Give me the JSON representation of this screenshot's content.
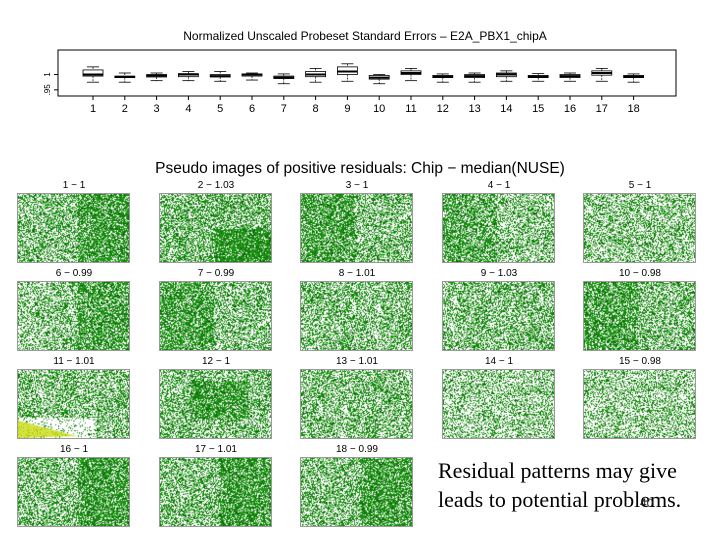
{
  "page": {
    "caption_line1": "Residual patterns  may give",
    "caption_line2": "leads to  potential problems.",
    "page_number": "40"
  },
  "chart_data": [
    {
      "type": "box",
      "title": "Normalized Unscaled Probeset Standard Errors –  E2A_PBX1_chipA",
      "ytick_labels": [
        "1",
        ".95"
      ],
      "categories": [
        "1",
        "2",
        "3",
        "4",
        "5",
        "6",
        "7",
        "8",
        "9",
        "10",
        "11",
        "12",
        "13",
        "14",
        "15",
        "16",
        "17",
        "18"
      ],
      "ylim": [
        0.93,
        1.08
      ],
      "boxes": [
        {
          "q1": 0.995,
          "median": 1.0,
          "q3": 1.015,
          "whisker_low": 0.975,
          "whisker_high": 1.025
        },
        {
          "q1": 0.99,
          "median": 0.992,
          "q3": 0.995,
          "whisker_low": 0.975,
          "whisker_high": 1.005
        },
        {
          "q1": 0.992,
          "median": 0.997,
          "q3": 1.0,
          "whisker_low": 0.98,
          "whisker_high": 1.005
        },
        {
          "q1": 0.993,
          "median": 1.0,
          "q3": 1.003,
          "whisker_low": 0.98,
          "whisker_high": 1.01
        },
        {
          "q1": 0.992,
          "median": 0.995,
          "q3": 1.0,
          "whisker_low": 0.978,
          "whisker_high": 1.01
        },
        {
          "q1": 0.995,
          "median": 1.0,
          "q3": 1.002,
          "whisker_low": 0.982,
          "whisker_high": 1.005
        },
        {
          "q1": 0.987,
          "median": 0.99,
          "q3": 0.995,
          "whisker_low": 0.97,
          "whisker_high": 1.002
        },
        {
          "q1": 0.993,
          "median": 1.0,
          "q3": 1.01,
          "whisker_low": 0.975,
          "whisker_high": 1.02
        },
        {
          "q1": 1.0,
          "median": 1.01,
          "q3": 1.025,
          "whisker_low": 0.978,
          "whisker_high": 1.035
        },
        {
          "q1": 0.985,
          "median": 0.99,
          "q3": 0.997,
          "whisker_low": 0.97,
          "whisker_high": 1.0
        },
        {
          "q1": 1.0,
          "median": 1.005,
          "q3": 1.012,
          "whisker_low": 0.98,
          "whisker_high": 1.02
        },
        {
          "q1": 0.99,
          "median": 0.993,
          "q3": 0.997,
          "whisker_low": 0.975,
          "whisker_high": 1.002
        },
        {
          "q1": 0.99,
          "median": 0.995,
          "q3": 1.0,
          "whisker_low": 0.975,
          "whisker_high": 1.005
        },
        {
          "q1": 0.993,
          "median": 1.0,
          "q3": 1.005,
          "whisker_low": 0.978,
          "whisker_high": 1.012
        },
        {
          "q1": 0.99,
          "median": 0.993,
          "q3": 0.997,
          "whisker_low": 0.978,
          "whisker_high": 1.003
        },
        {
          "q1": 0.99,
          "median": 0.995,
          "q3": 1.0,
          "whisker_low": 0.978,
          "whisker_high": 1.005
        },
        {
          "q1": 0.998,
          "median": 1.005,
          "q3": 1.012,
          "whisker_low": 0.978,
          "whisker_high": 1.02
        },
        {
          "q1": 0.99,
          "median": 0.993,
          "q3": 0.997,
          "whisker_low": 0.975,
          "whisker_high": 1.002
        }
      ],
      "colors": {
        "box": "#000000"
      }
    },
    {
      "type": "image-grid",
      "title": "Pseudo images of positive residuals: Chip − median(NUSE)",
      "colors": {
        "dots": "#1f9a16",
        "dots_dark": "#0e6e0a",
        "highlight": "#c8d800"
      },
      "panels": [
        {
          "label": "1 − 1",
          "density": 0.55,
          "dense_region": "right"
        },
        {
          "label": "2 − 1.03",
          "density": 0.6,
          "dense_region": "bottom-right"
        },
        {
          "label": "3 − 1",
          "density": 0.55,
          "dense_region": "left"
        },
        {
          "label": "4 − 1",
          "density": 0.5,
          "dense_region": "left"
        },
        {
          "label": "5 − 1",
          "density": 0.5,
          "dense_region": "none"
        },
        {
          "label": "6 − 0.99",
          "density": 0.5,
          "dense_region": "right"
        },
        {
          "label": "7 − 0.99",
          "density": 0.55,
          "dense_region": "left"
        },
        {
          "label": "8 − 1.01",
          "density": 0.55,
          "dense_region": "none"
        },
        {
          "label": "9 − 1.03",
          "density": 0.55,
          "dense_region": "none"
        },
        {
          "label": "10 − 0.98",
          "density": 0.55,
          "dense_region": "left"
        },
        {
          "label": "11 − 1.01",
          "density": 0.55,
          "dense_region": "bottom-left"
        },
        {
          "label": "12 − 1",
          "density": 0.55,
          "dense_region": "center"
        },
        {
          "label": "13 − 1.01",
          "density": 0.55,
          "dense_region": "none"
        },
        {
          "label": "14 − 1",
          "density": 0.45,
          "dense_region": "none"
        },
        {
          "label": "15 − 0.98",
          "density": 0.45,
          "dense_region": "none"
        },
        {
          "label": "16 − 1",
          "density": 0.55,
          "dense_region": "right"
        },
        {
          "label": "17 − 1.01",
          "density": 0.55,
          "dense_region": "right"
        },
        {
          "label": "18 − 0.99",
          "density": 0.55,
          "dense_region": "right"
        }
      ]
    }
  ]
}
